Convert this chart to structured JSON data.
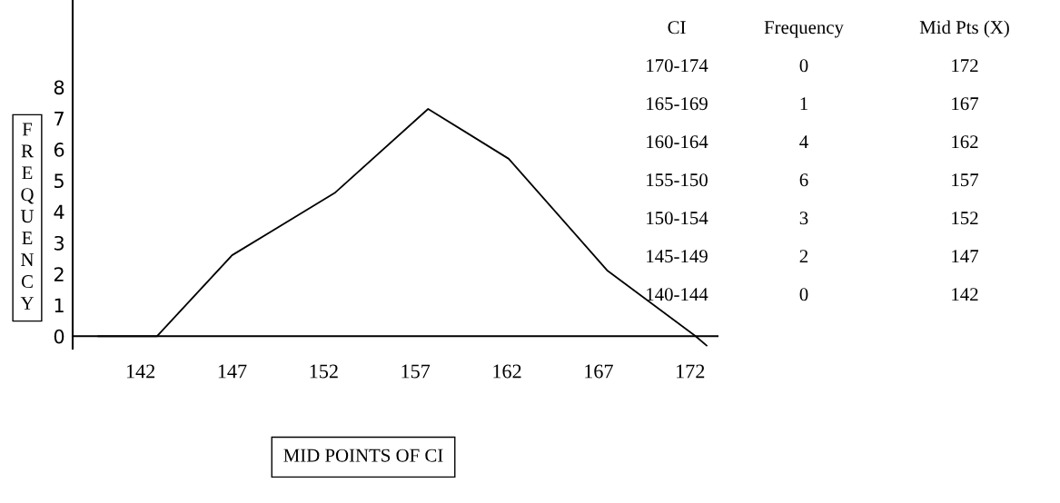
{
  "chart_data": {
    "type": "line",
    "xlabel": "MID POINTS OF CI",
    "ylabel": "FREQUENCY",
    "x": [
      139.7,
      142.9,
      147.0,
      152.6,
      157.7,
      162.1,
      167.5,
      172.3,
      172.9
    ],
    "values": [
      0,
      0,
      2.6,
      4.6,
      7.3,
      5.7,
      2.1,
      0,
      -0.3
    ],
    "color": "#000000",
    "xlim": [
      138.3,
      173.5
    ],
    "xticks": [
      142,
      147,
      152,
      157,
      162,
      167,
      172
    ],
    "ylim": [
      -0.4,
      10.8
    ],
    "yticks": [
      0,
      1,
      2,
      3,
      4,
      5,
      6,
      7,
      8
    ],
    "grid": false,
    "marker": "none",
    "line_style": "solid",
    "annotations": [
      "CI",
      "Frequency",
      "Mid Pts (X)",
      "170-174",
      "0",
      "172",
      "165-169",
      "1",
      "167",
      "160-164",
      "4",
      "162",
      "155-150",
      "6",
      "157",
      "150-154",
      "3",
      "152",
      "145-149",
      "2",
      "147",
      "140-144",
      "0",
      "142"
    ]
  }
}
